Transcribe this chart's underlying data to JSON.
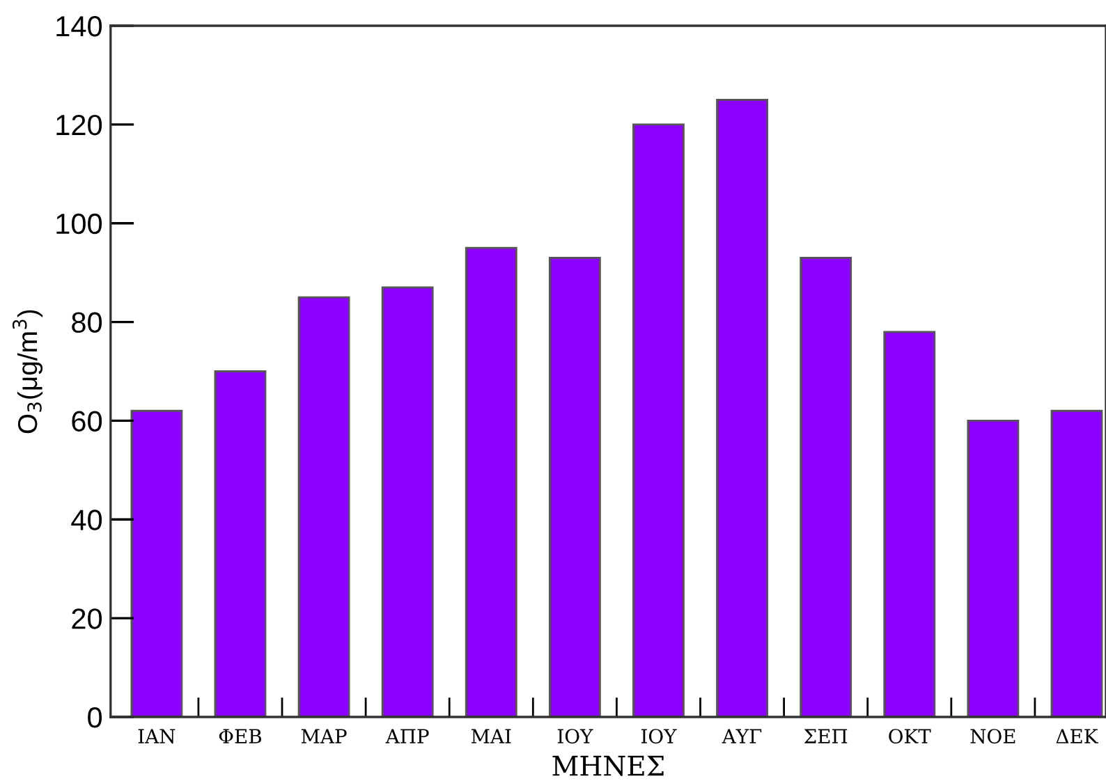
{
  "chart_data": {
    "type": "bar",
    "xlabel": "ΜΗΝΕΣ",
    "ylabel": "O$_{3}$(μg/m$^{3}$)",
    "categories": [
      "ΙΑΝ",
      "ΦΕΒ",
      "ΜΑΡ",
      "ΑΠΡ",
      "ΜΑΙ",
      "ΙΟΥ",
      "ΙΟΥ",
      "ΑΥΓ",
      "ΣΕΠ",
      "ΟΚΤ",
      "ΝΟΕ",
      "ΔΕΚ"
    ],
    "values": [
      62,
      70,
      85,
      87,
      95,
      93,
      120,
      125,
      93,
      78,
      60,
      62
    ],
    "color": "#8b00ff",
    "ylim": [
      0,
      140
    ],
    "yticks": [
      0,
      20,
      40,
      60,
      80,
      100,
      120,
      140
    ],
    "grid": false
  }
}
